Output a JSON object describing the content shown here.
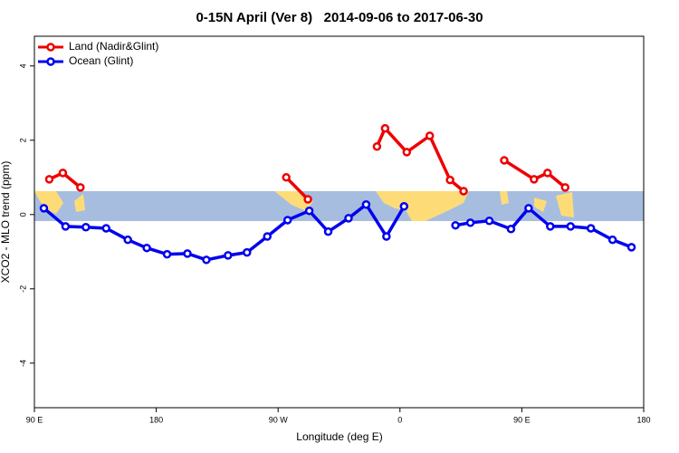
{
  "chart_data": {
    "type": "line",
    "title": "0-15N April (Ver 8)   2014-09-06 to 2017-06-30",
    "xlabel": "Longitude (deg E)",
    "ylabel": "XCO2 - MLO trend (ppm)",
    "xlim": [
      90,
      540
    ],
    "ylim": [
      -5.2,
      4.8
    ],
    "xticks": [
      {
        "value": 90,
        "label": "90 E"
      },
      {
        "value": 180,
        "label": "180"
      },
      {
        "value": 270,
        "label": "90 W"
      },
      {
        "value": 360,
        "label": "0"
      },
      {
        "value": 450,
        "label": "90 E"
      },
      {
        "value": 540,
        "label": "180"
      }
    ],
    "yticks": [
      -4,
      -2,
      0,
      2,
      4
    ],
    "legend": "top-left",
    "series": [
      {
        "name": "Land (Nadir&Glint)",
        "color": "#ee0000",
        "x": [
          101,
          111,
          124,
          null,
          276,
          292,
          null,
          343,
          349,
          365,
          382,
          397,
          407,
          null,
          437,
          459,
          469,
          482
        ],
        "values": [
          0.95,
          1.12,
          0.73,
          null,
          1.0,
          0.41,
          null,
          1.83,
          2.32,
          1.68,
          2.12,
          0.93,
          0.63,
          null,
          1.46,
          0.95,
          1.12,
          0.73
        ]
      },
      {
        "name": "Ocean (Glint)",
        "color": "#0000ee",
        "x": [
          97,
          113,
          128,
          143,
          159,
          173,
          188,
          203,
          217,
          233,
          247,
          262,
          277,
          293,
          307,
          322,
          335,
          350,
          363,
          null,
          401,
          412,
          426,
          442,
          455,
          471,
          486,
          501,
          517,
          531
        ],
        "values": [
          0.17,
          -0.32,
          -0.34,
          -0.37,
          -0.68,
          -0.9,
          -1.07,
          -1.05,
          -1.22,
          -1.1,
          -1.02,
          -0.59,
          -0.15,
          0.1,
          -0.46,
          -0.1,
          0.27,
          -0.59,
          0.22,
          null,
          -0.29,
          -0.22,
          -0.17,
          -0.39,
          0.17,
          -0.32,
          -0.32,
          -0.37,
          -0.68,
          -0.88
        ]
      }
    ]
  }
}
